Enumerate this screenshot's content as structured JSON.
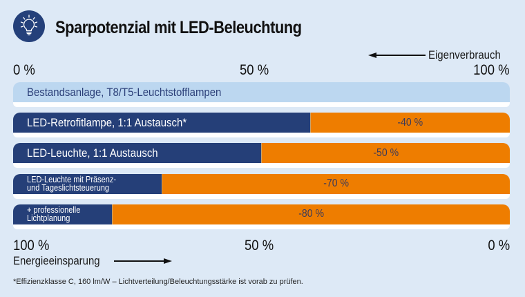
{
  "header": {
    "icon": "lightbulb-icon",
    "title": "Sparpotenzial mit LED-Beleuchtung"
  },
  "top_axis": {
    "arrow_label": "Eigenverbrauch",
    "arrow_direction": "left",
    "ticks": [
      "0 %",
      "50 %",
      "100 %"
    ]
  },
  "bottom_axis": {
    "arrow_label": "Energieeinsparung",
    "arrow_direction": "right",
    "ticks": [
      "100 %",
      "50 %",
      "0 %"
    ]
  },
  "colors": {
    "consumption": "#253f78",
    "savings": "#ee7d00",
    "baseline": "#bcd7f0",
    "background": "#dde9f6"
  },
  "chart_data": {
    "type": "bar",
    "orientation": "horizontal",
    "stacked": true,
    "title": "Sparpotenzial mit LED-Beleuchtung",
    "xlabel_top": "Eigenverbrauch",
    "xlabel_bottom": "Energieeinsparung",
    "xlim": [
      0,
      100
    ],
    "categories": [
      "Bestandsanlage, T8/T5-Leuchtstofflampen",
      "LED-Retrofitlampe, 1:1 Austausch*",
      "LED-Leuchte, 1:1 Austausch",
      "LED-Leuchte mit Präsenz-\nund Tageslichtsteuerung",
      "+ professionelle\nLichtplanung"
    ],
    "series": [
      {
        "name": "Eigenverbrauch",
        "values": [
          100,
          60,
          50,
          30,
          20
        ]
      },
      {
        "name": "Energieeinsparung",
        "values": [
          0,
          40,
          50,
          70,
          80
        ]
      }
    ],
    "data_labels": [
      "",
      "-40 %",
      "-50 %",
      "-70 %",
      "-80 %"
    ],
    "legend": "none"
  },
  "footnote": "*Effizienzklasse C, 160 lm/W – Lichtverteilung/Beleuchtungsstärke ist vorab zu prüfen."
}
